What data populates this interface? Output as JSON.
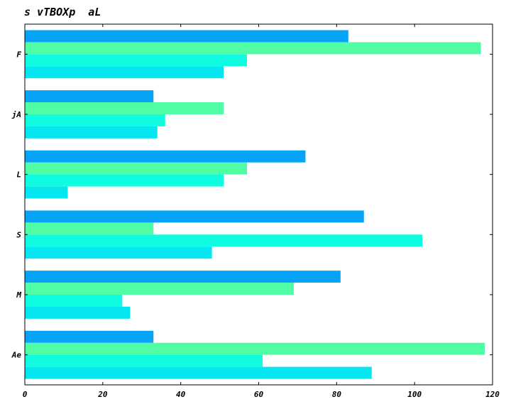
{
  "chart_data": {
    "type": "bar",
    "orientation": "horizontal",
    "title": "s vTBOXp  aL",
    "xlabel": "",
    "ylabel": "",
    "categories": [
      "Ae",
      "M",
      "S",
      "L",
      "jA",
      "F"
    ],
    "xlim": [
      0,
      120
    ],
    "xticks": [
      0,
      20,
      40,
      60,
      80,
      100,
      120
    ],
    "grid": false,
    "series": [
      {
        "color": "#05e6f0",
        "values": [
          89,
          27,
          48,
          11,
          34,
          51
        ]
      },
      {
        "color": "#10fce0",
        "values": [
          61,
          25,
          102,
          51,
          36,
          57
        ]
      },
      {
        "color": "#50fca4",
        "values": [
          118,
          69,
          33,
          57,
          51,
          117
        ]
      },
      {
        "color": "#06a3f6",
        "values": [
          33,
          81,
          87,
          72,
          33,
          83
        ]
      }
    ]
  }
}
